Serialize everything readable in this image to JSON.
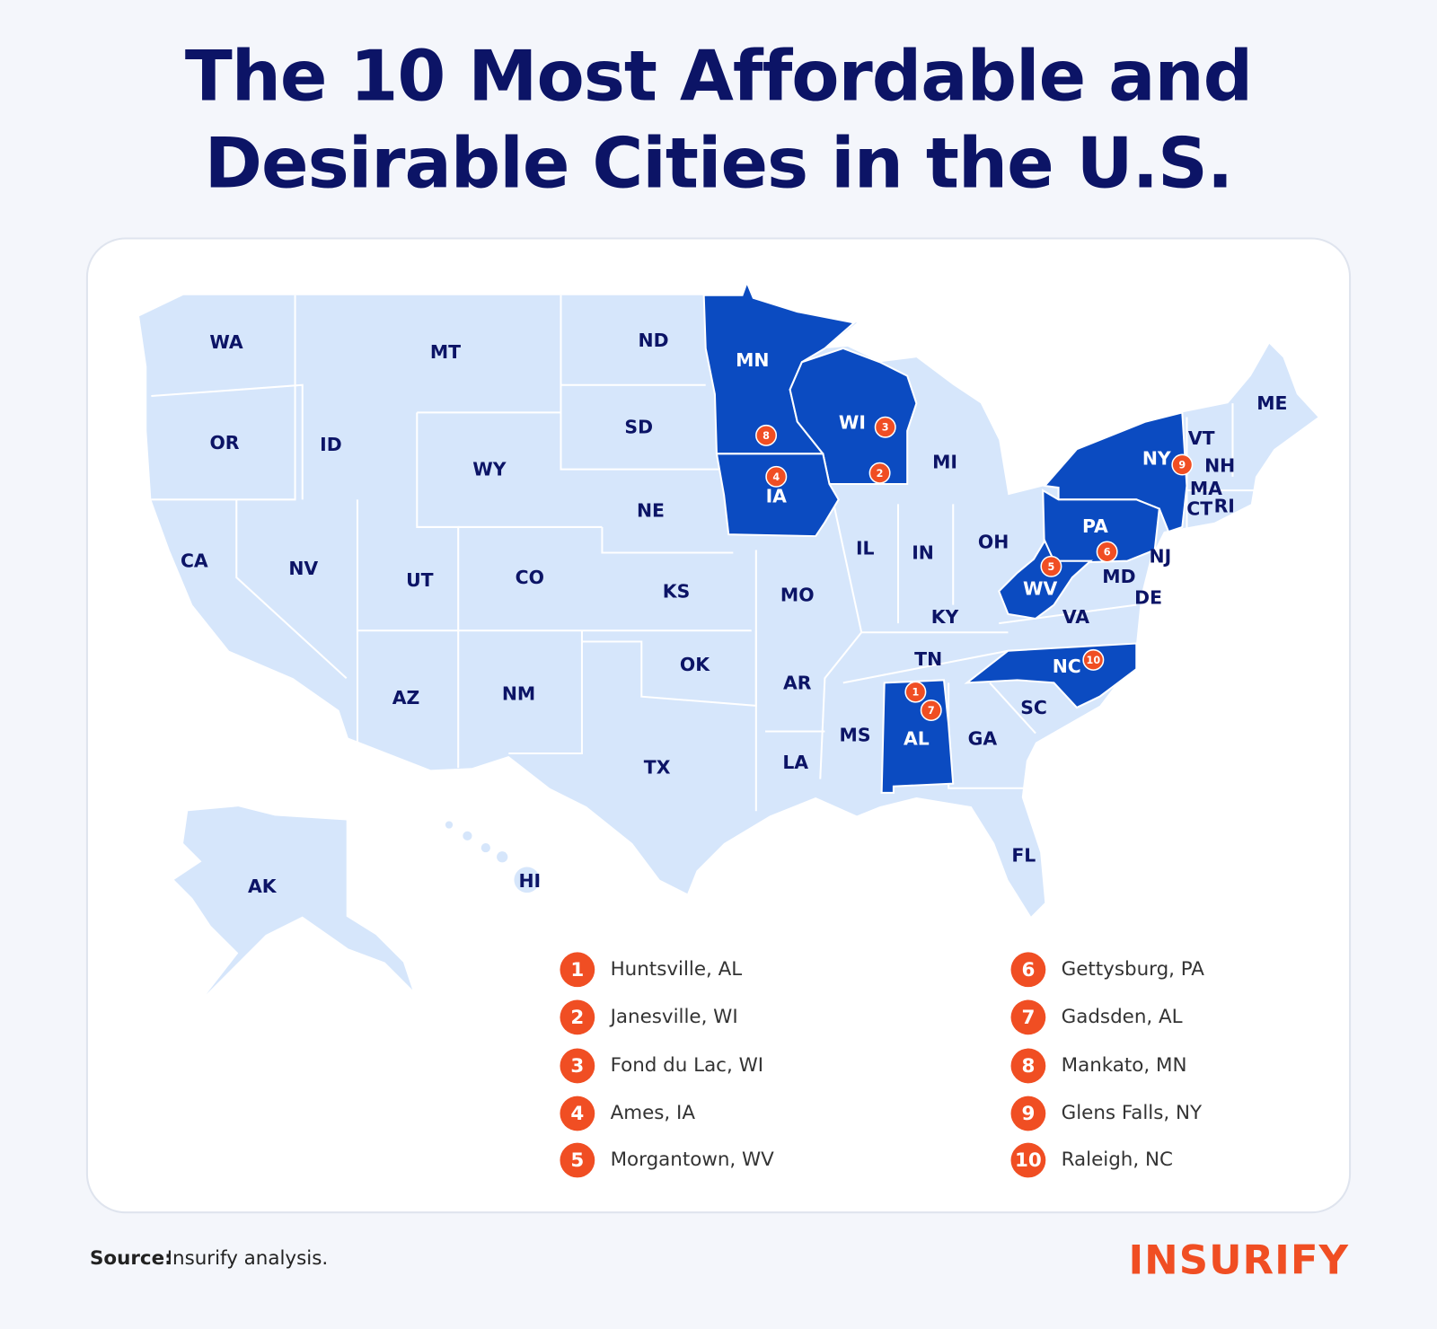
{
  "header": {
    "title": [
      "The 10 Most Affordable and",
      "Desirable Cities in the U.S."
    ]
  },
  "map": {
    "states": [
      {
        "label": "WA",
        "highlighted": false
      },
      {
        "label": "OR",
        "highlighted": false
      },
      {
        "label": "CA",
        "highlighted": false
      },
      {
        "label": "ID",
        "highlighted": false
      },
      {
        "label": "NV",
        "highlighted": false
      },
      {
        "label": "MT",
        "highlighted": false
      },
      {
        "label": "WY",
        "highlighted": false
      },
      {
        "label": "UT",
        "highlighted": false
      },
      {
        "label": "AZ",
        "highlighted": false
      },
      {
        "label": "CO",
        "highlighted": false
      },
      {
        "label": "NM",
        "highlighted": false
      },
      {
        "label": "ND",
        "highlighted": false
      },
      {
        "label": "SD",
        "highlighted": false
      },
      {
        "label": "NE",
        "highlighted": false
      },
      {
        "label": "KS",
        "highlighted": false
      },
      {
        "label": "OK",
        "highlighted": false
      },
      {
        "label": "TX",
        "highlighted": false
      },
      {
        "label": "MN",
        "highlighted": true
      },
      {
        "label": "IA",
        "highlighted": true
      },
      {
        "label": "MO",
        "highlighted": false
      },
      {
        "label": "AR",
        "highlighted": false
      },
      {
        "label": "LA",
        "highlighted": false
      },
      {
        "label": "WI",
        "highlighted": true
      },
      {
        "label": "IL",
        "highlighted": false
      },
      {
        "label": "MI",
        "highlighted": false
      },
      {
        "label": "IN",
        "highlighted": false
      },
      {
        "label": "OH",
        "highlighted": false
      },
      {
        "label": "KY",
        "highlighted": false
      },
      {
        "label": "TN",
        "highlighted": false
      },
      {
        "label": "MS",
        "highlighted": false
      },
      {
        "label": "AL",
        "highlighted": true
      },
      {
        "label": "GA",
        "highlighted": false
      },
      {
        "label": "FL",
        "highlighted": false
      },
      {
        "label": "SC",
        "highlighted": false
      },
      {
        "label": "NC",
        "highlighted": true
      },
      {
        "label": "VA",
        "highlighted": false
      },
      {
        "label": "WV",
        "highlighted": true
      },
      {
        "label": "MD",
        "highlighted": false
      },
      {
        "label": "DE",
        "highlighted": false
      },
      {
        "label": "PA",
        "highlighted": true
      },
      {
        "label": "NJ",
        "highlighted": false
      },
      {
        "label": "NY",
        "highlighted": true
      },
      {
        "label": "CT",
        "highlighted": false
      },
      {
        "label": "RI",
        "highlighted": false
      },
      {
        "label": "MA",
        "highlighted": false
      },
      {
        "label": "VT",
        "highlighted": false
      },
      {
        "label": "NH",
        "highlighted": false
      },
      {
        "label": "ME",
        "highlighted": false
      },
      {
        "label": "AK",
        "highlighted": false
      },
      {
        "label": "HI",
        "highlighted": false
      }
    ]
  },
  "legend": {
    "items": [
      {
        "rank": "1",
        "city": "Huntsville, AL"
      },
      {
        "rank": "2",
        "city": "Janesville, WI"
      },
      {
        "rank": "3",
        "city": "Fond du Lac, WI"
      },
      {
        "rank": "4",
        "city": "Ames, IA"
      },
      {
        "rank": "5",
        "city": "Morgantown, WV"
      },
      {
        "rank": "6",
        "city": "Gettysburg, PA"
      },
      {
        "rank": "7",
        "city": "Gadsden, AL"
      },
      {
        "rank": "8",
        "city": "Mankato, MN"
      },
      {
        "rank": "9",
        "city": "Glens Falls, NY"
      },
      {
        "rank": "10",
        "city": "Raleigh, NC"
      }
    ]
  },
  "footer": {
    "source_label": "Source:",
    "source_text": "Insurify analysis.",
    "logo": "INSURIFY"
  }
}
